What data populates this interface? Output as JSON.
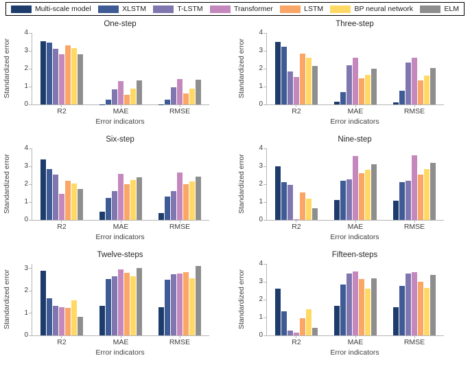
{
  "figure": {
    "legend": [
      {
        "label": "Multi-scale model",
        "color": "#1d3c6b"
      },
      {
        "label": "XLSTM",
        "color": "#3e5b96"
      },
      {
        "label": "T-LSTM",
        "color": "#8077b0"
      },
      {
        "label": "Transformer",
        "color": "#c488bd"
      },
      {
        "label": "LSTM",
        "color": "#f9a666"
      },
      {
        "label": "BP neural network",
        "color": "#ffd964"
      },
      {
        "label": "ELM",
        "color": "#8e8e8e"
      }
    ],
    "axis": {
      "ylabel": "Standardized error",
      "xlabel": "Error indicators",
      "categories": [
        "R2",
        "MAE",
        "RMSE"
      ],
      "line_color": "#b5b5b5",
      "tick_text_color": "#3d3d3d",
      "title_text_color": "#262626"
    }
  },
  "chart_data": [
    {
      "type": "bar",
      "title": "One-step",
      "xlabel": "Error indicators",
      "ylabel": "Standardized error",
      "categories": [
        "R2",
        "MAE",
        "RMSE"
      ],
      "ylim": [
        0,
        4
      ],
      "yticks": [
        0,
        1,
        2,
        3,
        4
      ],
      "grid": false,
      "series": [
        {
          "name": "Multi-scale model",
          "values": [
            3.55,
            0.02,
            0.02
          ]
        },
        {
          "name": "XLSTM",
          "values": [
            3.45,
            0.28,
            0.27
          ]
        },
        {
          "name": "T-LSTM",
          "values": [
            3.1,
            0.85,
            0.97
          ]
        },
        {
          "name": "Transformer",
          "values": [
            2.8,
            1.3,
            1.42
          ]
        },
        {
          "name": "LSTM",
          "values": [
            3.3,
            0.53,
            0.62
          ]
        },
        {
          "name": "BP neural network",
          "values": [
            3.17,
            0.9,
            0.87
          ]
        },
        {
          "name": "ELM",
          "values": [
            2.8,
            1.35,
            1.4
          ]
        }
      ]
    },
    {
      "type": "bar",
      "title": "Three-step",
      "xlabel": "Error indicators",
      "ylabel": "Standardized error",
      "categories": [
        "R2",
        "MAE",
        "RMSE"
      ],
      "ylim": [
        0,
        4
      ],
      "yticks": [
        0,
        1,
        2,
        3,
        4
      ],
      "grid": false,
      "series": [
        {
          "name": "Multi-scale model",
          "values": [
            3.5,
            0.15,
            0.13
          ]
        },
        {
          "name": "XLSTM",
          "values": [
            3.22,
            0.7,
            0.77
          ]
        },
        {
          "name": "T-LSTM",
          "values": [
            1.83,
            2.2,
            2.35
          ]
        },
        {
          "name": "Transformer",
          "values": [
            1.53,
            2.6,
            2.6
          ]
        },
        {
          "name": "LSTM",
          "values": [
            2.83,
            1.47,
            1.35
          ]
        },
        {
          "name": "BP neural network",
          "values": [
            2.6,
            1.65,
            1.6
          ]
        },
        {
          "name": "ELM",
          "values": [
            2.17,
            2.0,
            2.05
          ]
        }
      ]
    },
    {
      "type": "bar",
      "title": "Six-step",
      "xlabel": "Error indicators",
      "ylabel": "Standardized error",
      "categories": [
        "R2",
        "MAE",
        "RMSE"
      ],
      "ylim": [
        0,
        4
      ],
      "yticks": [
        0,
        1,
        2,
        3,
        4
      ],
      "grid": false,
      "series": [
        {
          "name": "Multi-scale model",
          "values": [
            3.4,
            0.45,
            0.38
          ]
        },
        {
          "name": "XLSTM",
          "values": [
            2.85,
            1.25,
            1.3
          ]
        },
        {
          "name": "T-LSTM",
          "values": [
            2.55,
            1.63,
            1.63
          ]
        },
        {
          "name": "Transformer",
          "values": [
            1.45,
            2.58,
            2.65
          ]
        },
        {
          "name": "LSTM",
          "values": [
            2.2,
            2.02,
            2.0
          ]
        },
        {
          "name": "BP neural network",
          "values": [
            2.05,
            2.25,
            2.15
          ]
        },
        {
          "name": "ELM",
          "values": [
            1.73,
            2.4,
            2.42
          ]
        }
      ]
    },
    {
      "type": "bar",
      "title": "Nine-step",
      "xlabel": "Error indicators",
      "ylabel": "Standardized error",
      "categories": [
        "R2",
        "MAE",
        "RMSE"
      ],
      "ylim": [
        0,
        4
      ],
      "yticks": [
        0,
        1,
        2,
        3,
        4
      ],
      "grid": false,
      "series": [
        {
          "name": "Multi-scale model",
          "values": [
            3.0,
            1.13,
            1.08
          ]
        },
        {
          "name": "XLSTM",
          "values": [
            2.1,
            2.18,
            2.1
          ]
        },
        {
          "name": "T-LSTM",
          "values": [
            1.97,
            2.27,
            2.2
          ]
        },
        {
          "name": "Transformer",
          "values": [
            0.05,
            3.57,
            3.6
          ]
        },
        {
          "name": "LSTM",
          "values": [
            1.55,
            2.63,
            2.55
          ]
        },
        {
          "name": "BP neural network",
          "values": [
            1.18,
            2.8,
            2.85
          ]
        },
        {
          "name": "ELM",
          "values": [
            0.67,
            3.1,
            3.2
          ]
        }
      ]
    },
    {
      "type": "bar",
      "title": "Twelve-steps",
      "xlabel": "Error indicators",
      "ylabel": "Standardized error",
      "categories": [
        "R2",
        "MAE",
        "RMSE"
      ],
      "ylim": [
        0,
        3.2
      ],
      "yticks": [
        0,
        1,
        2,
        3
      ],
      "grid": false,
      "series": [
        {
          "name": "Multi-scale model",
          "values": [
            2.88,
            1.32,
            1.27
          ]
        },
        {
          "name": "XLSTM",
          "values": [
            1.65,
            2.53,
            2.5
          ]
        },
        {
          "name": "T-LSTM",
          "values": [
            1.33,
            2.65,
            2.75
          ]
        },
        {
          "name": "Transformer",
          "values": [
            1.27,
            2.97,
            2.78
          ]
        },
        {
          "name": "LSTM",
          "values": [
            1.22,
            2.8,
            2.83
          ]
        },
        {
          "name": "BP neural network",
          "values": [
            1.57,
            2.65,
            2.57
          ]
        },
        {
          "name": "ELM",
          "values": [
            0.82,
            3.02,
            3.1
          ]
        }
      ]
    },
    {
      "type": "bar",
      "title": "Fifteen-steps",
      "xlabel": "Error indicators",
      "ylabel": "Standardized error",
      "categories": [
        "R2",
        "MAE",
        "RMSE"
      ],
      "ylim": [
        0,
        4
      ],
      "yticks": [
        0,
        1,
        2,
        3,
        4
      ],
      "grid": false,
      "series": [
        {
          "name": "Multi-scale model",
          "values": [
            2.63,
            1.65,
            1.58
          ]
        },
        {
          "name": "XLSTM",
          "values": [
            1.33,
            2.83,
            2.77
          ]
        },
        {
          "name": "T-LSTM",
          "values": [
            0.27,
            3.47,
            3.47
          ]
        },
        {
          "name": "Transformer",
          "values": [
            0.17,
            3.58,
            3.53
          ]
        },
        {
          "name": "LSTM",
          "values": [
            0.97,
            3.17,
            3.02
          ]
        },
        {
          "name": "BP neural network",
          "values": [
            1.47,
            2.6,
            2.65
          ]
        },
        {
          "name": "ELM",
          "values": [
            0.43,
            3.2,
            3.37
          ]
        }
      ]
    }
  ]
}
